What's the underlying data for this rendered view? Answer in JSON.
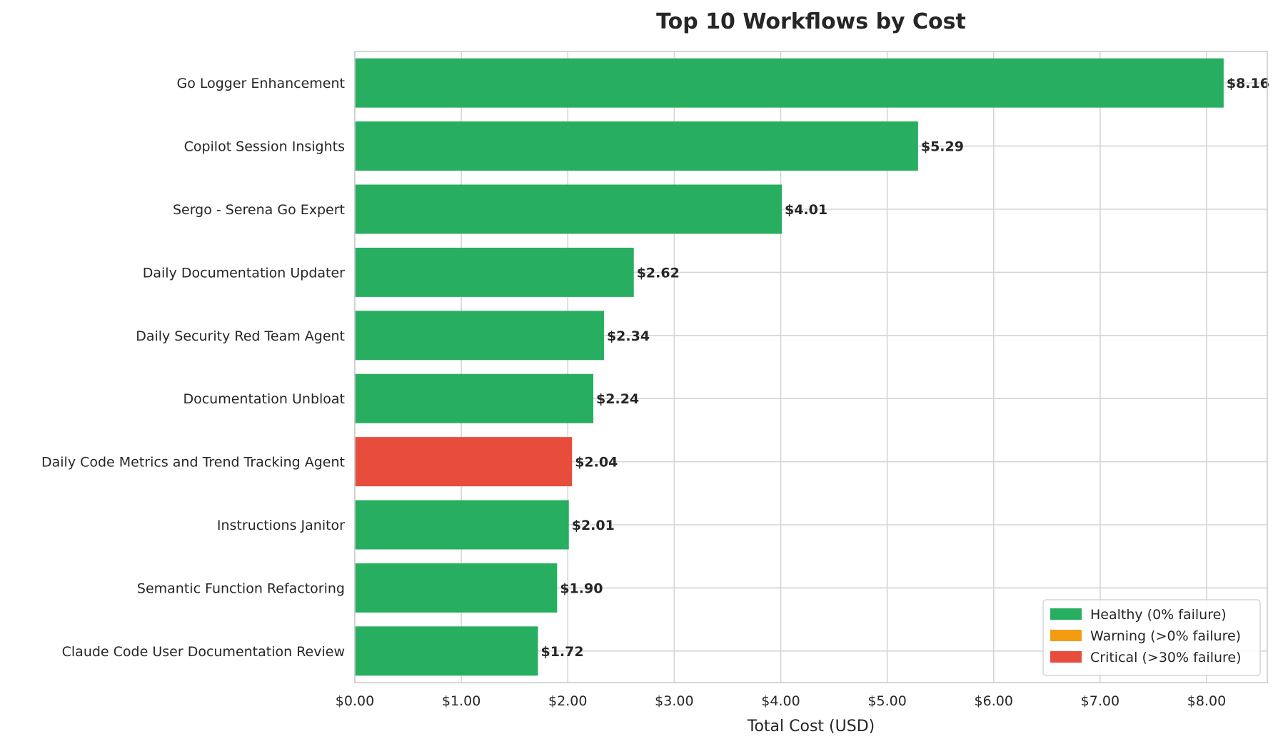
{
  "chart_data": {
    "type": "bar",
    "orientation": "horizontal",
    "title": "Top 10 Workflows by Cost",
    "xlabel": "Total Cost (USD)",
    "ylabel": "",
    "xlim": [
      0,
      8.57
    ],
    "grid": true,
    "x_ticks": [
      "$0.00",
      "$1.00",
      "$2.00",
      "$3.00",
      "$4.00",
      "$5.00",
      "$6.00",
      "$7.00",
      "$8.00"
    ],
    "categories": [
      "Go Logger Enhancement",
      "Copilot Session Insights",
      "Sergo - Serena Go Expert",
      "Daily Documentation Updater",
      "Daily Security Red Team Agent",
      "Documentation Unbloat",
      "Daily Code Metrics and Trend Tracking Agent",
      "Instructions Janitor",
      "Semantic Function Refactoring",
      "Claude Code User Documentation Review"
    ],
    "values": [
      8.16,
      5.29,
      4.01,
      2.62,
      2.34,
      2.24,
      2.04,
      2.01,
      1.9,
      1.72
    ],
    "value_labels": [
      "$8.16",
      "$5.29",
      "$4.01",
      "$2.62",
      "$2.34",
      "$2.24",
      "$2.04",
      "$2.01",
      "$1.90",
      "$1.72"
    ],
    "status": [
      "healthy",
      "healthy",
      "healthy",
      "healthy",
      "healthy",
      "healthy",
      "critical",
      "healthy",
      "healthy",
      "healthy"
    ],
    "colors": {
      "healthy": "#27ae60",
      "warning": "#f39c12",
      "critical": "#e74c3c"
    },
    "legend": {
      "placement": "lower-right",
      "entries": [
        {
          "key": "healthy",
          "label": "Healthy (0% failure)"
        },
        {
          "key": "warning",
          "label": "Warning (>0% failure)"
        },
        {
          "key": "critical",
          "label": "Critical (>30% failure)"
        }
      ]
    }
  }
}
